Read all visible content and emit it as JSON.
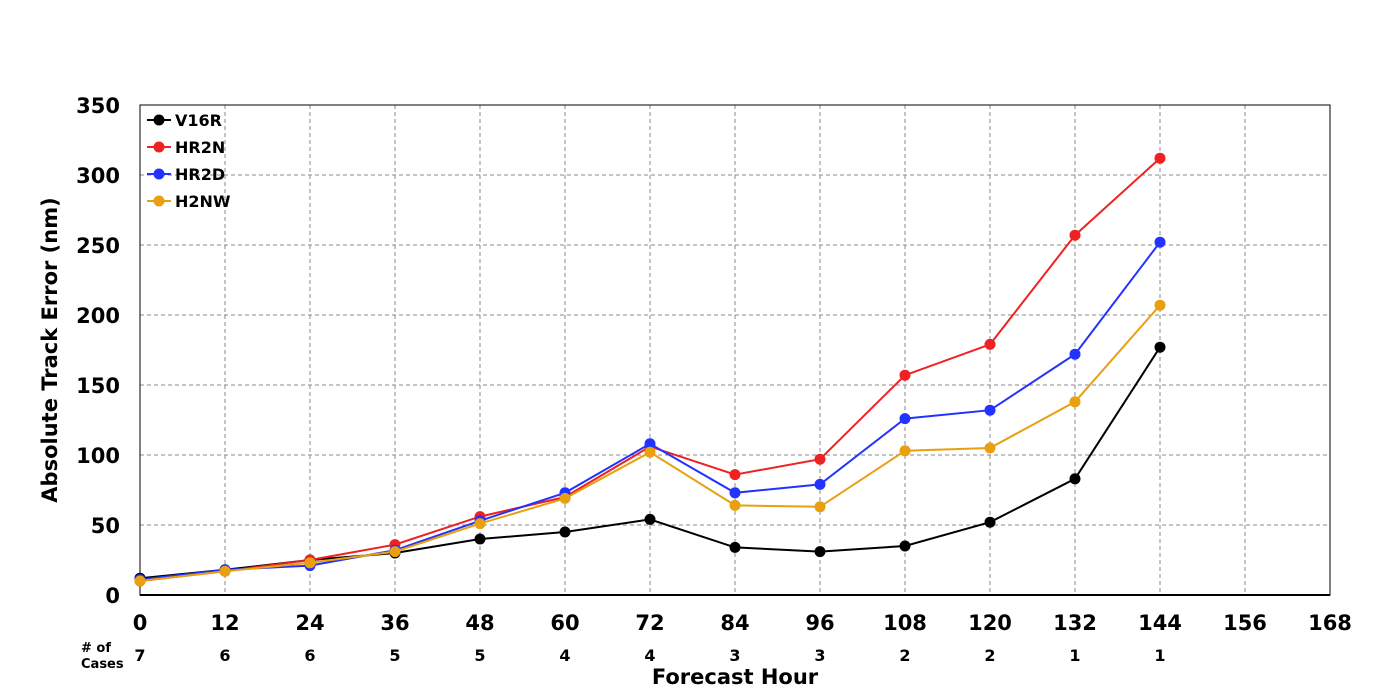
{
  "chart_data": {
    "type": "line",
    "xlabel": "Forecast Hour",
    "ylabel": "Absolute Track Error (nm)",
    "xlim": [
      0,
      168
    ],
    "ylim": [
      0,
      350
    ],
    "x_ticks": [
      "0",
      "12",
      "24",
      "36",
      "48",
      "60",
      "72",
      "84",
      "96",
      "108",
      "120",
      "132",
      "144",
      "156",
      "168"
    ],
    "y_ticks": [
      "0",
      "50",
      "100",
      "150",
      "200",
      "250",
      "300",
      "350"
    ],
    "grid": true,
    "legend_position": "top-left",
    "x": [
      0,
      12,
      24,
      36,
      48,
      60,
      72,
      84,
      96,
      108,
      120,
      132,
      144
    ],
    "series": [
      {
        "name": "V16R",
        "color": "#000000",
        "values": [
          12,
          18,
          25,
          30,
          40,
          45,
          54,
          34,
          31,
          35,
          52,
          83,
          177
        ]
      },
      {
        "name": "HR2N",
        "color": "#ee2222",
        "values": [
          10,
          17,
          25,
          36,
          56,
          70,
          106,
          86,
          97,
          157,
          179,
          257,
          312
        ]
      },
      {
        "name": "HR2D",
        "color": "#2233ff",
        "values": [
          11,
          18,
          21,
          32,
          53,
          73,
          108,
          73,
          79,
          126,
          132,
          172,
          252
        ]
      },
      {
        "name": "H2NW",
        "color": "#e8a010",
        "values": [
          10,
          17,
          23,
          31,
          51,
          69,
          102,
          64,
          63,
          103,
          105,
          138,
          207
        ]
      }
    ],
    "cases_label_line1": "# of",
    "cases_label_line2": "Cases",
    "cases": [
      "7",
      "6",
      "6",
      "5",
      "5",
      "4",
      "4",
      "3",
      "3",
      "2",
      "2",
      "1",
      "1"
    ]
  }
}
